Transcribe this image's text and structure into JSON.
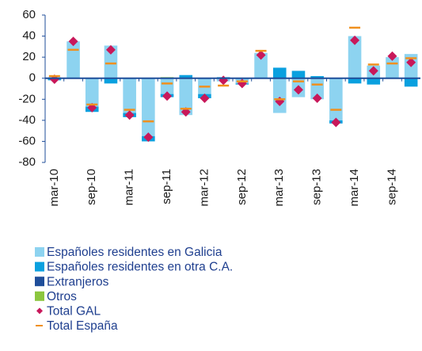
{
  "chart_data": {
    "type": "bar",
    "categories": [
      "mar-10",
      null,
      "sep-10",
      null,
      "mar-11",
      null,
      "sep-11",
      null,
      "mar-12",
      null,
      "sep-12",
      null,
      "mar-13",
      null,
      "sep-13",
      null,
      "mar-14",
      null,
      "sep-14",
      null
    ],
    "series": [
      {
        "name": "Españoles residentes en Galicia",
        "color": "#8dd3f0",
        "style": "bar",
        "values": [
          1,
          35,
          -27,
          31,
          -33,
          -55,
          -15,
          -35,
          -15,
          -3,
          -5,
          24,
          -33,
          -18,
          -20,
          -40,
          40,
          12,
          20,
          23
        ]
      },
      {
        "name": "Españoles residentes en otra C.A.",
        "color": "#0aa0df",
        "style": "bar",
        "values": [
          -2,
          0,
          -5,
          -5,
          -4,
          -5,
          -3,
          3,
          -4,
          1,
          -1,
          0,
          10,
          7,
          2,
          -3,
          -5,
          -6,
          0,
          -8
        ]
      },
      {
        "name": "Extranjeros",
        "color": "#1f4e9a",
        "style": "bar",
        "values": [
          0,
          0,
          0,
          0,
          0,
          0,
          0,
          0,
          0,
          0,
          0,
          0,
          0,
          0,
          0,
          0,
          0,
          0,
          0,
          0
        ]
      },
      {
        "name": "Otros",
        "color": "#8cc63f",
        "style": "bar",
        "values": [
          0,
          0,
          0,
          0,
          0,
          0,
          1,
          0,
          0,
          0,
          0,
          0,
          0,
          0,
          0,
          0,
          0,
          0,
          0,
          0
        ]
      },
      {
        "name": "Total GAL",
        "color": "#c8185a",
        "style": "diamond",
        "values": [
          -1,
          35,
          -28,
          27,
          -35,
          -56,
          -17,
          -32,
          -19,
          -2,
          -5,
          22,
          -22,
          -11,
          -19,
          -42,
          36,
          7,
          21,
          15
        ]
      },
      {
        "name": "Total España",
        "color": "#f0901e",
        "style": "dash",
        "values": [
          2,
          27,
          -25,
          14,
          -30,
          -41,
          -5,
          -29,
          -8,
          -7,
          -3,
          26,
          -20,
          -3,
          -6,
          -30,
          48,
          13,
          14,
          19
        ]
      }
    ],
    "ylim": [
      -80,
      60
    ],
    "yticks": [
      -80,
      -60,
      -40,
      -20,
      0,
      20,
      40,
      60
    ]
  }
}
